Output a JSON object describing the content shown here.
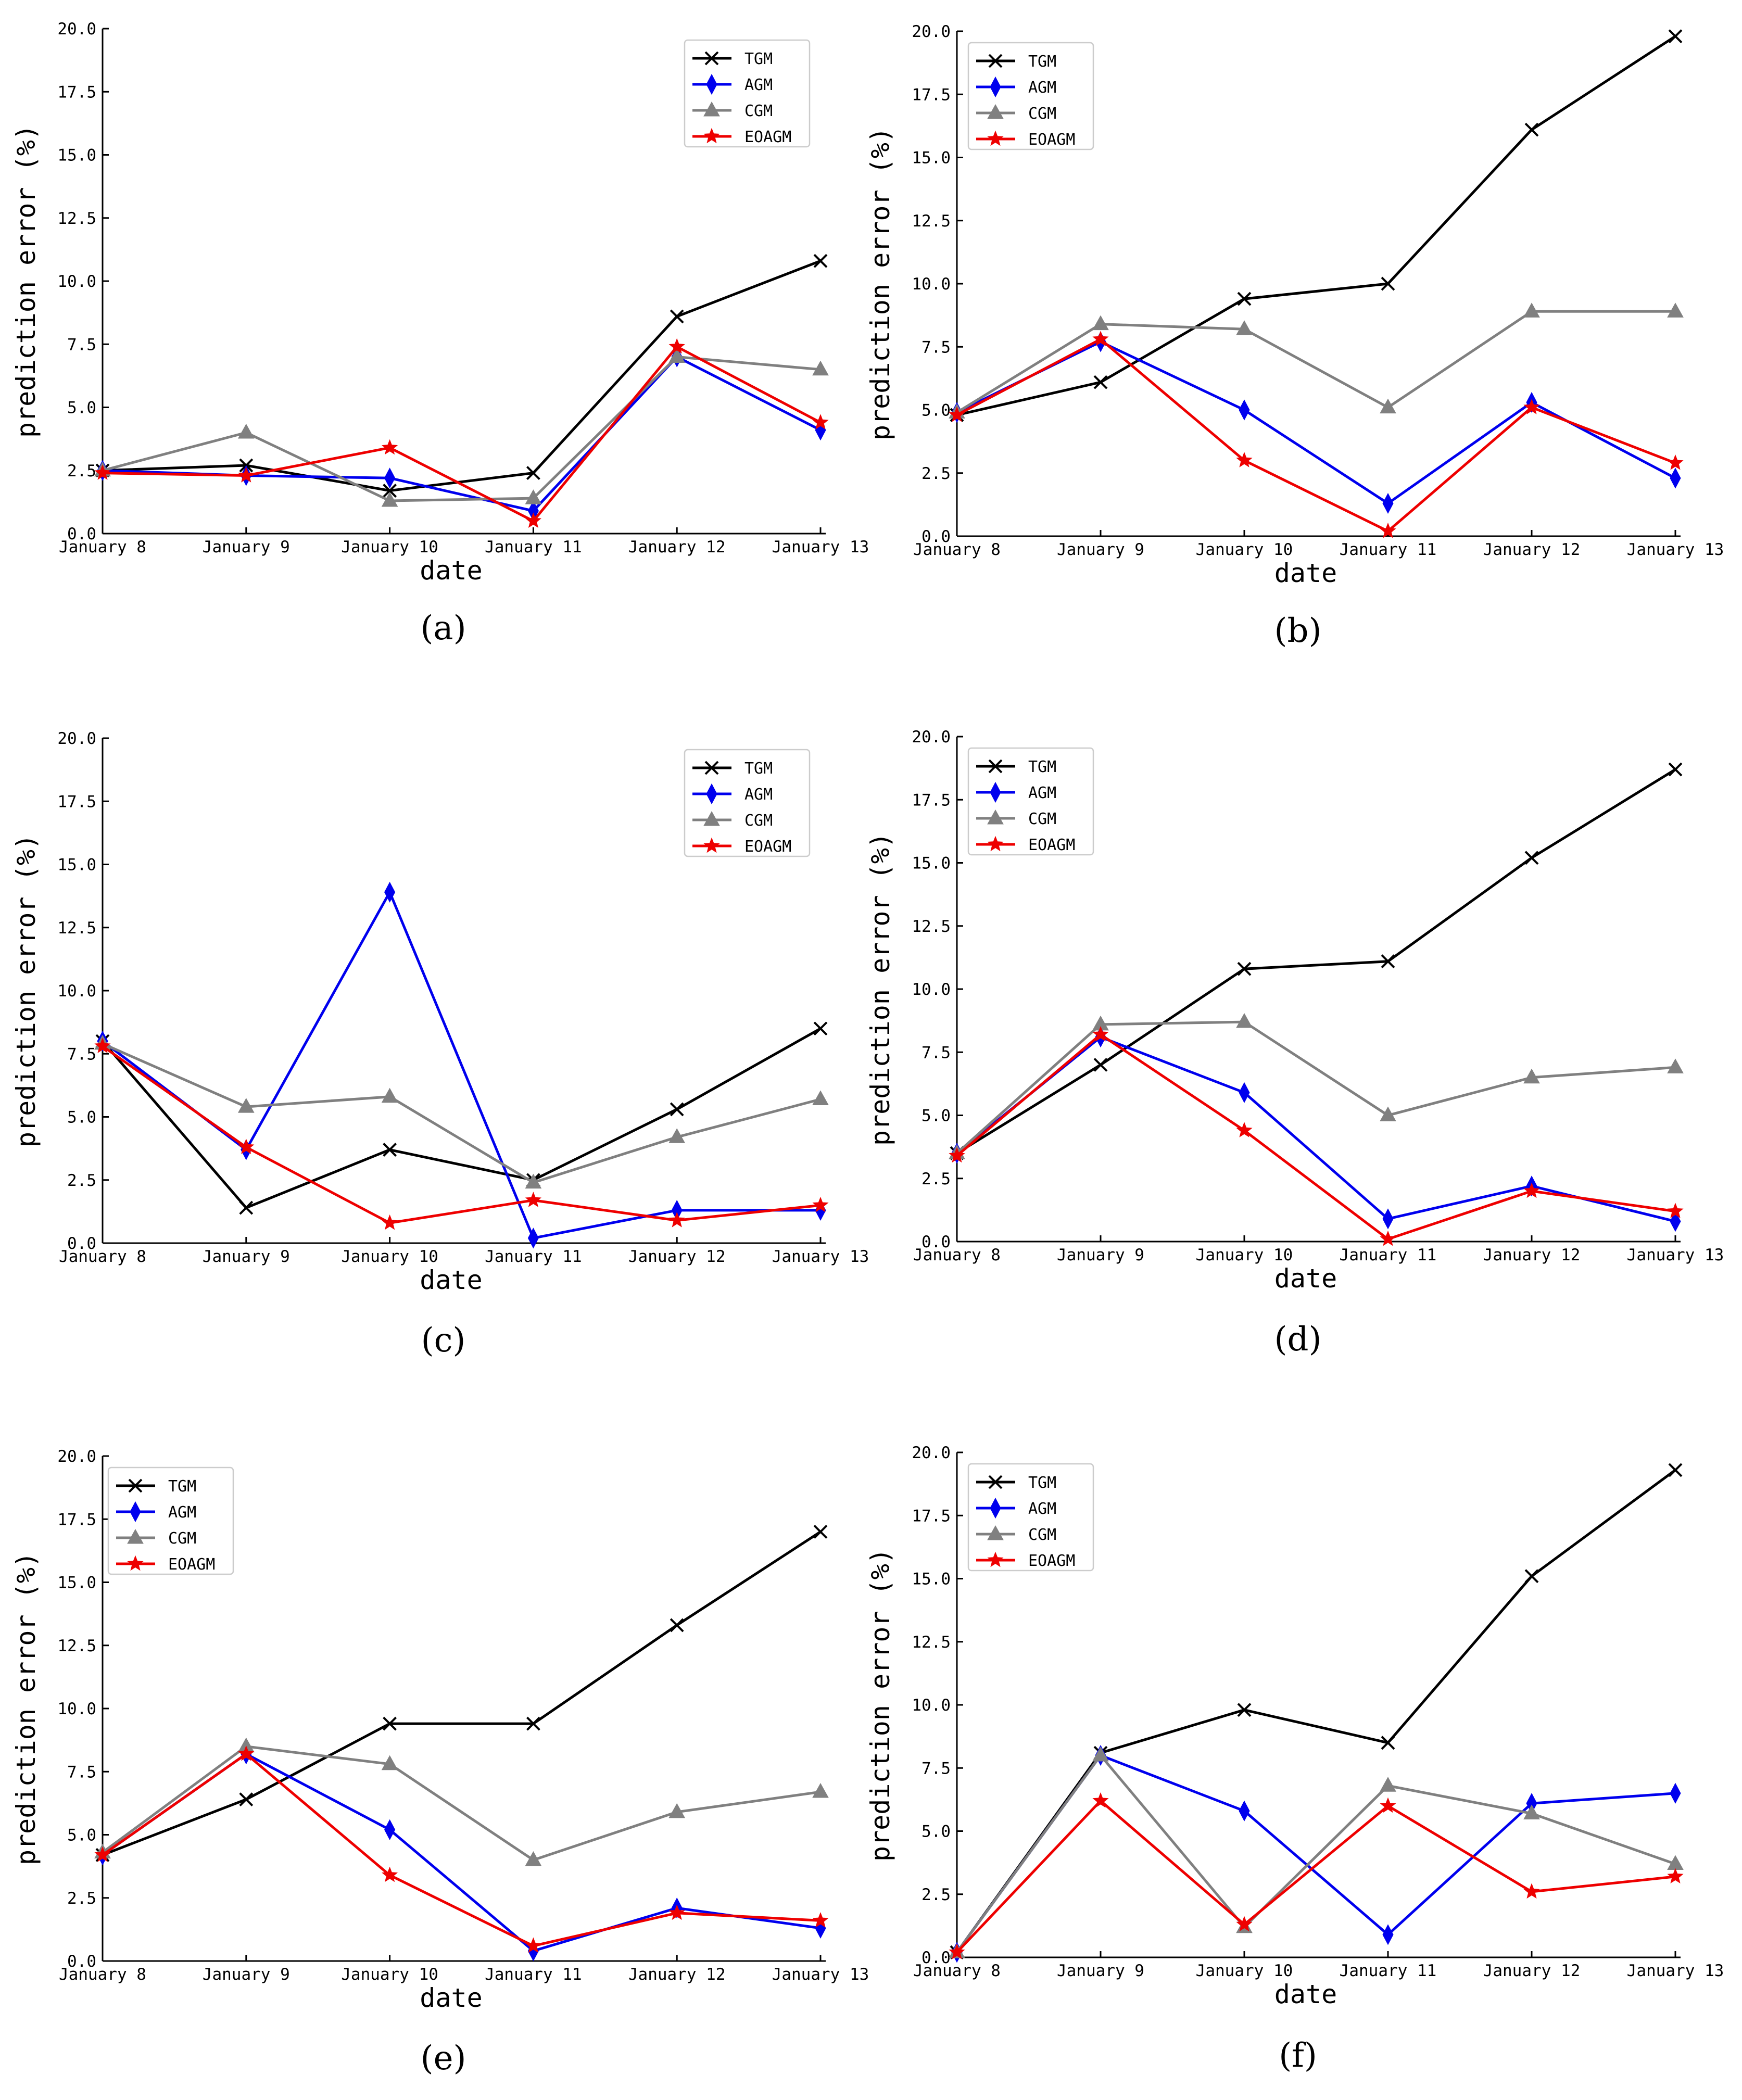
{
  "figure": {
    "panels": [
      "(a)",
      "(b)",
      "(c)",
      "(d)",
      "(e)",
      "(f)"
    ]
  },
  "colors": {
    "TGM": "#000000",
    "AGM": "#0000ee",
    "CGM": "#808080",
    "EOAGM": "#ee0000"
  },
  "chart_data": [
    {
      "type": "line",
      "panel_label": "(a)",
      "categories": [
        "January 8",
        "January 9",
        "January 10",
        "January 11",
        "January 12",
        "January 13"
      ],
      "yticks": [
        "0.0",
        "2.5",
        "5.0",
        "7.5",
        "10.0",
        "12.5",
        "15.0",
        "17.5",
        "20.0"
      ],
      "xlabel": "date",
      "ylabel": "prediction error (%)",
      "ylim": [
        0,
        20
      ],
      "legend": "top-right",
      "series": [
        {
          "name": "TGM",
          "marker": "x",
          "values": [
            2.5,
            2.7,
            1.7,
            2.4,
            8.6,
            10.8
          ]
        },
        {
          "name": "AGM",
          "marker": "diamond",
          "values": [
            2.5,
            2.3,
            2.2,
            0.9,
            7.0,
            4.1
          ]
        },
        {
          "name": "CGM",
          "marker": "triangle",
          "values": [
            2.5,
            4.0,
            1.3,
            1.4,
            7.0,
            6.5
          ]
        },
        {
          "name": "EOAGM",
          "marker": "star",
          "values": [
            2.4,
            2.3,
            3.4,
            0.5,
            7.4,
            4.4
          ]
        }
      ]
    },
    {
      "type": "line",
      "panel_label": "(b)",
      "categories": [
        "January 8",
        "January 9",
        "January 10",
        "January 11",
        "January 12",
        "January 13"
      ],
      "yticks": [
        "0.0",
        "2.5",
        "5.0",
        "7.5",
        "10.0",
        "12.5",
        "15.0",
        "17.5",
        "20.0"
      ],
      "xlabel": "date",
      "ylabel": "prediction error (%)",
      "ylim": [
        0,
        20
      ],
      "legend": "top-left",
      "series": [
        {
          "name": "TGM",
          "marker": "x",
          "values": [
            4.8,
            6.1,
            9.4,
            10.0,
            16.1,
            19.8
          ]
        },
        {
          "name": "AGM",
          "marker": "diamond",
          "values": [
            4.9,
            7.7,
            5.0,
            1.3,
            5.3,
            2.3
          ]
        },
        {
          "name": "CGM",
          "marker": "triangle",
          "values": [
            4.9,
            8.4,
            8.2,
            5.1,
            8.9,
            8.9
          ]
        },
        {
          "name": "EOAGM",
          "marker": "star",
          "values": [
            4.8,
            7.8,
            3.0,
            0.2,
            5.1,
            2.9
          ]
        }
      ]
    },
    {
      "type": "line",
      "panel_label": "(c)",
      "categories": [
        "January 8",
        "January 9",
        "January 10",
        "January 11",
        "January 12",
        "January 13"
      ],
      "yticks": [
        "0.0",
        "2.5",
        "5.0",
        "7.5",
        "10.0",
        "12.5",
        "15.0",
        "17.5",
        "20.0"
      ],
      "xlabel": "date",
      "ylabel": "prediction error (%)",
      "ylim": [
        0,
        20
      ],
      "legend": "top-right",
      "series": [
        {
          "name": "TGM",
          "marker": "x",
          "values": [
            8.0,
            1.4,
            3.7,
            2.5,
            5.3,
            8.5
          ]
        },
        {
          "name": "AGM",
          "marker": "diamond",
          "values": [
            8.0,
            3.7,
            13.9,
            0.2,
            1.3,
            1.3
          ]
        },
        {
          "name": "CGM",
          "marker": "triangle",
          "values": [
            7.9,
            5.4,
            5.8,
            2.4,
            4.2,
            5.7
          ]
        },
        {
          "name": "EOAGM",
          "marker": "star",
          "values": [
            7.8,
            3.8,
            0.8,
            1.7,
            0.9,
            1.5
          ]
        }
      ]
    },
    {
      "type": "line",
      "panel_label": "(d)",
      "categories": [
        "January 8",
        "January 9",
        "January 10",
        "January 11",
        "January 12",
        "January 13"
      ],
      "yticks": [
        "0.0",
        "2.5",
        "5.0",
        "7.5",
        "10.0",
        "12.5",
        "15.0",
        "17.5",
        "20.0"
      ],
      "xlabel": "date",
      "ylabel": "prediction error (%)",
      "ylim": [
        0,
        20
      ],
      "legend": "top-left",
      "series": [
        {
          "name": "TGM",
          "marker": "x",
          "values": [
            3.5,
            7.0,
            10.8,
            11.1,
            15.2,
            18.7
          ]
        },
        {
          "name": "AGM",
          "marker": "diamond",
          "values": [
            3.5,
            8.1,
            5.9,
            0.9,
            2.2,
            0.8
          ]
        },
        {
          "name": "CGM",
          "marker": "triangle",
          "values": [
            3.5,
            8.6,
            8.7,
            5.0,
            6.5,
            6.9
          ]
        },
        {
          "name": "EOAGM",
          "marker": "star",
          "values": [
            3.4,
            8.2,
            4.4,
            0.1,
            2.0,
            1.2
          ]
        }
      ]
    },
    {
      "type": "line",
      "panel_label": "(e)",
      "categories": [
        "January 8",
        "January 9",
        "January 10",
        "January 11",
        "January 12",
        "January 13"
      ],
      "yticks": [
        "0.0",
        "2.5",
        "5.0",
        "7.5",
        "10.0",
        "12.5",
        "15.0",
        "17.5",
        "20.0"
      ],
      "xlabel": "date",
      "ylabel": "prediction error (%)",
      "ylim": [
        0,
        20
      ],
      "legend": "top-left",
      "series": [
        {
          "name": "TGM",
          "marker": "x",
          "values": [
            4.2,
            6.4,
            9.4,
            9.4,
            13.3,
            17.0
          ]
        },
        {
          "name": "AGM",
          "marker": "diamond",
          "values": [
            4.2,
            8.2,
            5.2,
            0.4,
            2.1,
            1.3
          ]
        },
        {
          "name": "CGM",
          "marker": "triangle",
          "values": [
            4.3,
            8.5,
            7.8,
            4.0,
            5.9,
            6.7
          ]
        },
        {
          "name": "EOAGM",
          "marker": "star",
          "values": [
            4.2,
            8.2,
            3.4,
            0.6,
            1.9,
            1.6
          ]
        }
      ]
    },
    {
      "type": "line",
      "panel_label": "(f)",
      "categories": [
        "January 8",
        "January 9",
        "January 10",
        "January 11",
        "January 12",
        "January 13"
      ],
      "yticks": [
        "0.0",
        "2.5",
        "5.0",
        "7.5",
        "10.0",
        "12.5",
        "15.0",
        "17.5",
        "20.0"
      ],
      "xlabel": "date",
      "ylabel": "prediction error (%)",
      "ylim": [
        0,
        20
      ],
      "legend": "top-left",
      "series": [
        {
          "name": "TGM",
          "marker": "x",
          "values": [
            0.2,
            8.1,
            9.8,
            8.5,
            15.1,
            19.3
          ]
        },
        {
          "name": "AGM",
          "marker": "diamond",
          "values": [
            0.2,
            8.0,
            5.8,
            0.9,
            6.1,
            6.5
          ]
        },
        {
          "name": "CGM",
          "marker": "triangle",
          "values": [
            0.2,
            8.0,
            1.2,
            6.8,
            5.7,
            3.7
          ]
        },
        {
          "name": "EOAGM",
          "marker": "star",
          "values": [
            0.2,
            6.2,
            1.3,
            6.0,
            2.6,
            3.2
          ]
        }
      ]
    }
  ]
}
